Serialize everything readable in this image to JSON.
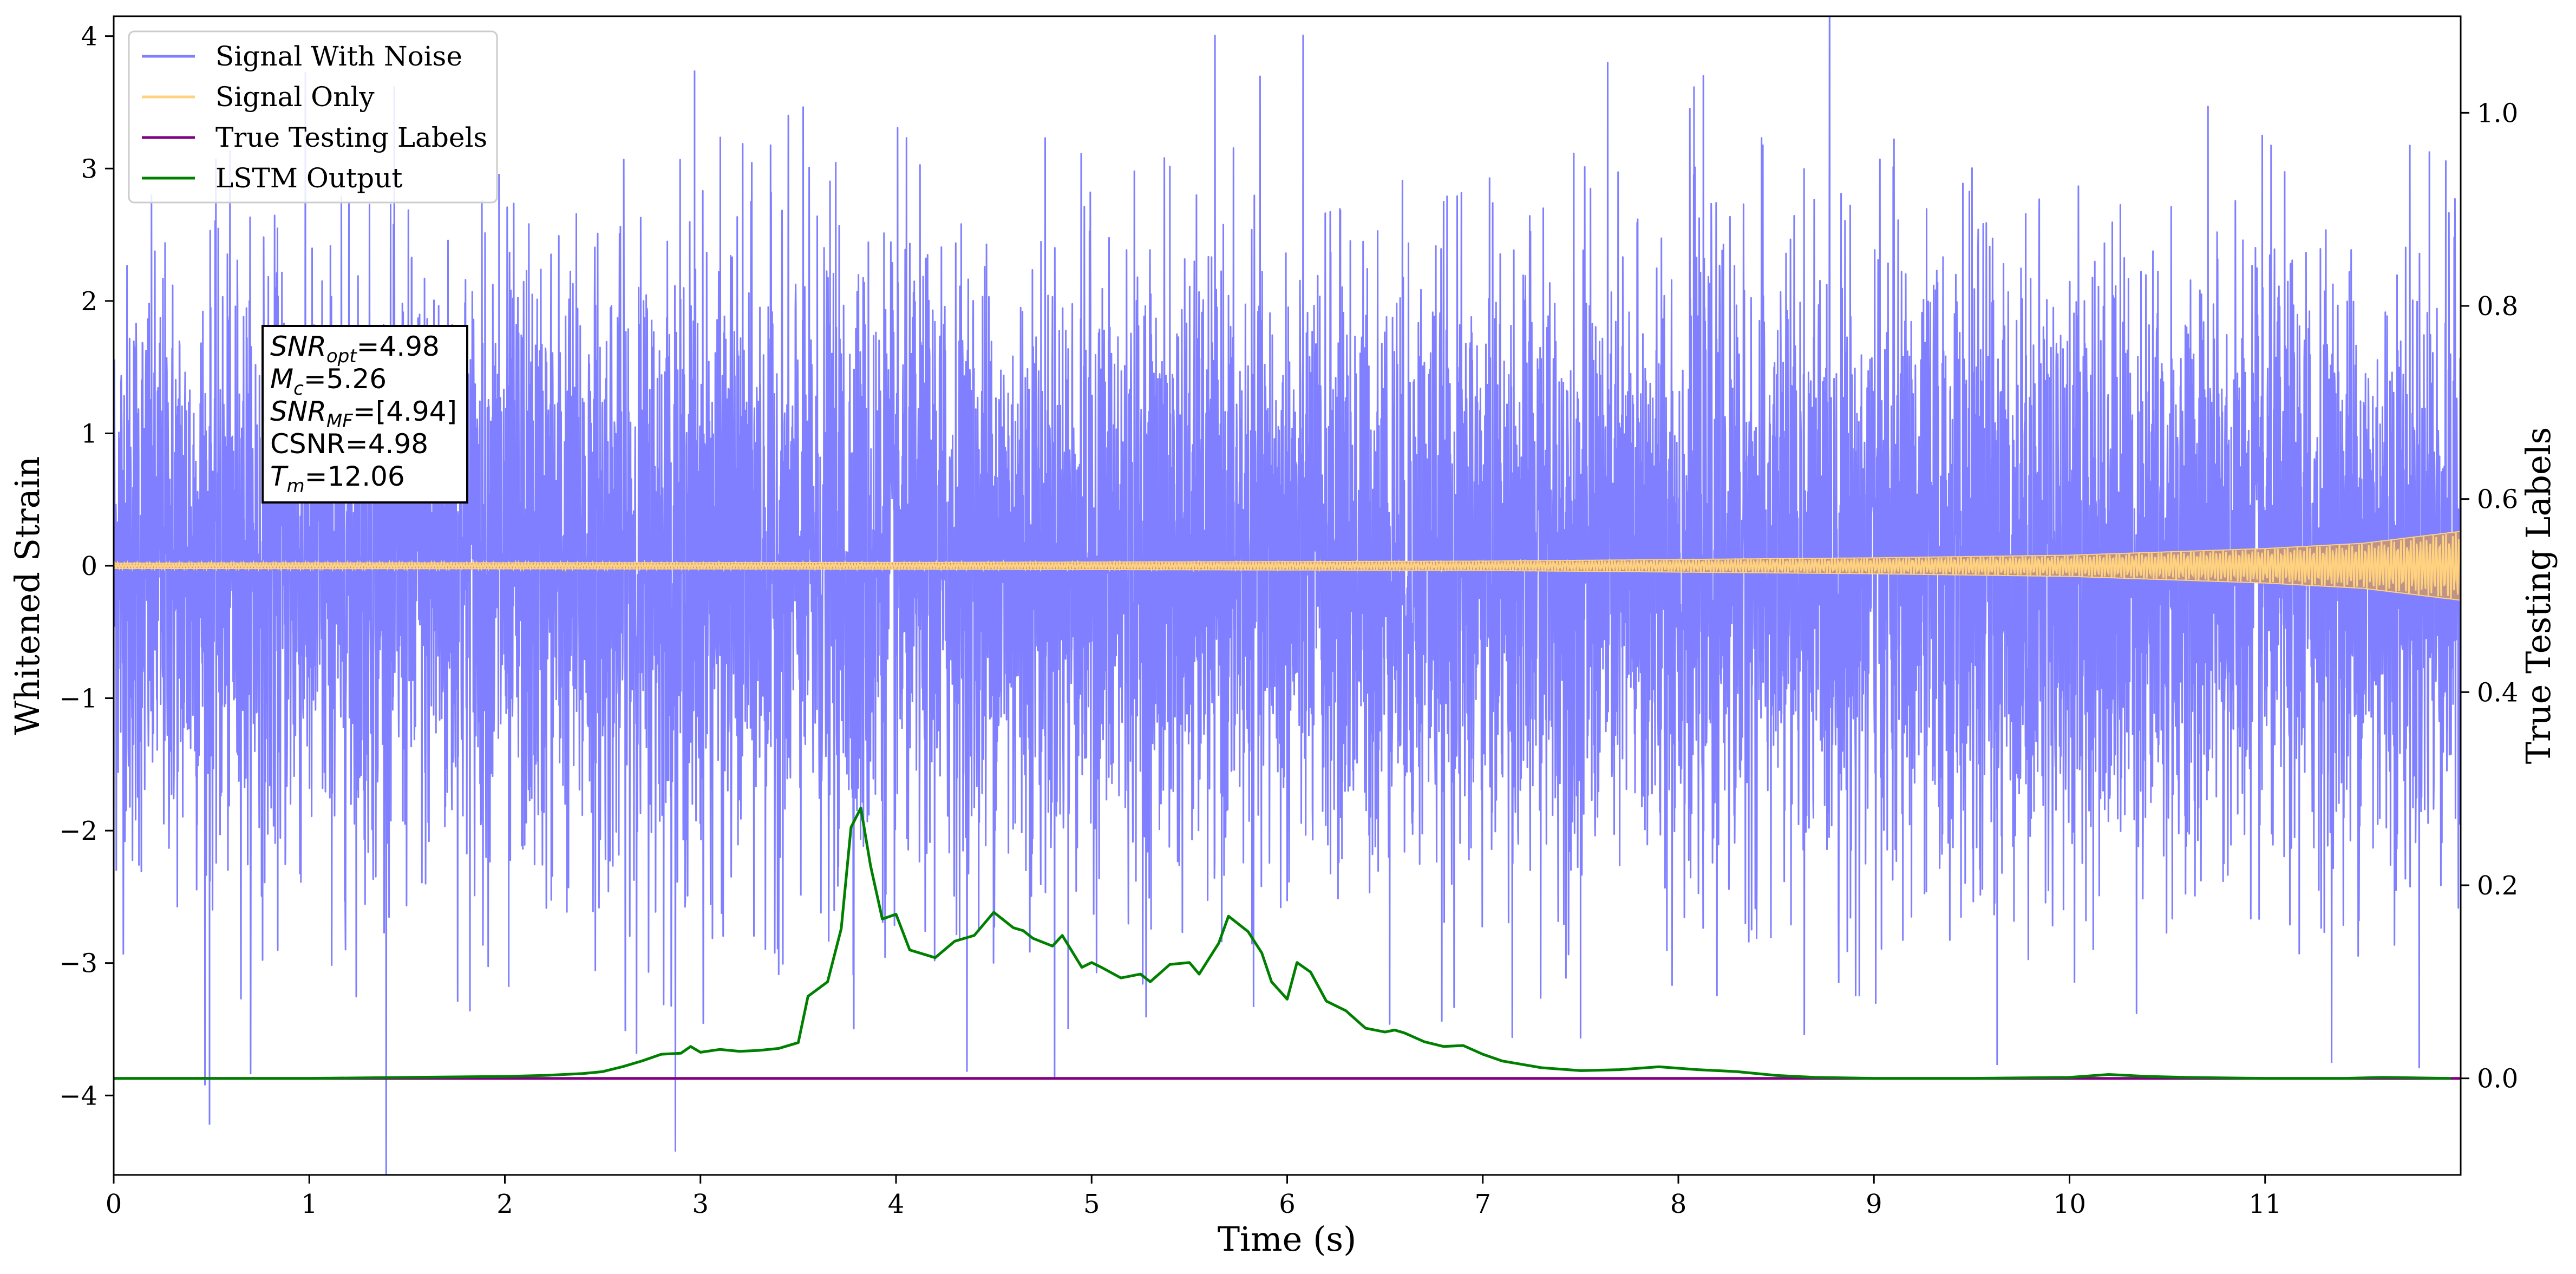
{
  "chart_data": {
    "type": "line",
    "xlabel": "Time (s)",
    "ylabel_left": "Whitened Strain",
    "ylabel_right": "True Testing Labels",
    "xlim": [
      0,
      12
    ],
    "ylim_left": [
      -4.6,
      4.15
    ],
    "ylim_right": [
      -0.1,
      1.1
    ],
    "x_ticks": [
      {
        "value": 0,
        "label": "0"
      },
      {
        "value": 1,
        "label": "1"
      },
      {
        "value": 2,
        "label": "2"
      },
      {
        "value": 3,
        "label": "3"
      },
      {
        "value": 4,
        "label": "4"
      },
      {
        "value": 5,
        "label": "5"
      },
      {
        "value": 6,
        "label": "6"
      },
      {
        "value": 7,
        "label": "7"
      },
      {
        "value": 8,
        "label": "8"
      },
      {
        "value": 9,
        "label": "9"
      },
      {
        "value": 10,
        "label": "10"
      },
      {
        "value": 11,
        "label": "11"
      }
    ],
    "y_left_ticks": [
      {
        "value": 4,
        "label": "4"
      },
      {
        "value": 3,
        "label": "3"
      },
      {
        "value": 2,
        "label": "2"
      },
      {
        "value": 1,
        "label": "1"
      },
      {
        "value": 0,
        "label": "0"
      },
      {
        "value": -1,
        "label": "−1"
      },
      {
        "value": -2,
        "label": "−2"
      },
      {
        "value": -3,
        "label": "−3"
      },
      {
        "value": -4,
        "label": "−4"
      }
    ],
    "y_right_ticks": [
      {
        "value": 1.0,
        "label": "1.0"
      },
      {
        "value": 0.8,
        "label": "0.8"
      },
      {
        "value": 0.6,
        "label": "0.6"
      },
      {
        "value": 0.4,
        "label": "0.4"
      },
      {
        "value": 0.2,
        "label": "0.2"
      },
      {
        "value": 0.0,
        "label": "0.0"
      }
    ],
    "legend": {
      "placement": "top-left",
      "entries": [
        {
          "label": "Signal With Noise",
          "color": "#7f7fff"
        },
        {
          "label": "Signal Only",
          "color": "#ffd280"
        },
        {
          "label": "True Testing Labels",
          "color": "#800080"
        },
        {
          "label": "LSTM Output",
          "color": "#008000"
        }
      ]
    },
    "series": [
      {
        "name": "Signal With Noise",
        "axis": "left",
        "color": "#7f7fff",
        "description_kind": "dense_noise",
        "envelope_x": [
          0,
          3,
          6,
          9,
          12
        ],
        "envelope_upper": [
          1.8,
          1.9,
          1.8,
          1.9,
          1.8
        ],
        "envelope_lower": [
          -1.8,
          -1.9,
          -1.8,
          -1.9,
          -1.8
        ],
        "notable_peaks": [
          {
            "x": 0.49,
            "y": -4.22
          },
          {
            "x": 2.97,
            "y": 3.74
          },
          {
            "x": 8.08,
            "y": 3.62
          },
          {
            "x": 11.84,
            "y": 3.13
          },
          {
            "x": 9.63,
            "y": -3.77
          },
          {
            "x": 7.5,
            "y": -3.57
          },
          {
            "x": 4.88,
            "y": -3.5
          },
          {
            "x": 1.97,
            "y": 2.96
          },
          {
            "x": 2.02,
            "y": -3.18
          },
          {
            "x": 5.4,
            "y": 3.02
          }
        ]
      },
      {
        "name": "Signal Only",
        "axis": "left",
        "color": "#ffd280",
        "description_kind": "chirp",
        "envelope_x": [
          0,
          4,
          7,
          9,
          10,
          11,
          11.5,
          12
        ],
        "envelope_amp": [
          0.02,
          0.025,
          0.035,
          0.06,
          0.08,
          0.13,
          0.17,
          0.26
        ]
      },
      {
        "name": "True Testing Labels",
        "axis": "right",
        "color": "#800080",
        "x": [
          0,
          12
        ],
        "y": [
          0.0,
          0.0
        ]
      },
      {
        "name": "LSTM Output",
        "axis": "right",
        "color": "#008000",
        "x": [
          0.0,
          1.0,
          1.5,
          2.0,
          2.2,
          2.4,
          2.5,
          2.6,
          2.7,
          2.8,
          2.9,
          2.95,
          3.0,
          3.1,
          3.2,
          3.3,
          3.4,
          3.5,
          3.55,
          3.65,
          3.72,
          3.77,
          3.82,
          3.87,
          3.93,
          4.0,
          4.07,
          4.2,
          4.3,
          4.4,
          4.5,
          4.6,
          4.65,
          4.7,
          4.8,
          4.85,
          4.95,
          5.0,
          5.05,
          5.15,
          5.25,
          5.3,
          5.4,
          5.5,
          5.55,
          5.65,
          5.7,
          5.8,
          5.87,
          5.92,
          6.0,
          6.05,
          6.12,
          6.2,
          6.3,
          6.4,
          6.5,
          6.55,
          6.6,
          6.7,
          6.8,
          6.9,
          7.0,
          7.1,
          7.3,
          7.5,
          7.7,
          7.9,
          8.1,
          8.3,
          8.5,
          8.7,
          9.0,
          9.5,
          10.0,
          10.2,
          10.4,
          10.6,
          11.0,
          11.4,
          11.6,
          11.95
        ],
        "y": [
          0.0,
          0.0,
          0.001,
          0.002,
          0.003,
          0.005,
          0.007,
          0.012,
          0.018,
          0.025,
          0.026,
          0.033,
          0.027,
          0.03,
          0.028,
          0.029,
          0.031,
          0.037,
          0.085,
          0.1,
          0.155,
          0.26,
          0.28,
          0.22,
          0.165,
          0.17,
          0.133,
          0.125,
          0.142,
          0.148,
          0.172,
          0.156,
          0.153,
          0.145,
          0.137,
          0.148,
          0.115,
          0.12,
          0.115,
          0.104,
          0.108,
          0.1,
          0.118,
          0.12,
          0.108,
          0.14,
          0.168,
          0.152,
          0.13,
          0.1,
          0.082,
          0.12,
          0.11,
          0.08,
          0.07,
          0.052,
          0.048,
          0.05,
          0.047,
          0.038,
          0.033,
          0.034,
          0.025,
          0.018,
          0.011,
          0.008,
          0.009,
          0.012,
          0.009,
          0.007,
          0.003,
          0.001,
          0.0,
          0.0,
          0.001,
          0.004,
          0.002,
          0.001,
          0.0,
          0.0,
          0.001,
          0.0
        ]
      }
    ],
    "annotation": {
      "lines": [
        {
          "var": "SNR",
          "sub": "opt",
          "value": "=4.98"
        },
        {
          "var": "M",
          "sub": "c",
          "value": "=5.26"
        },
        {
          "var": "SNR",
          "sub": "MF",
          "value": "=[4.94]"
        },
        {
          "var": "",
          "sub": "",
          "value": "CSNR=4.98"
        },
        {
          "var": "T",
          "sub": "m",
          "value": "=12.06"
        }
      ],
      "position_data": {
        "x": 0.78,
        "y_left": 1.8
      }
    },
    "grid": false
  }
}
